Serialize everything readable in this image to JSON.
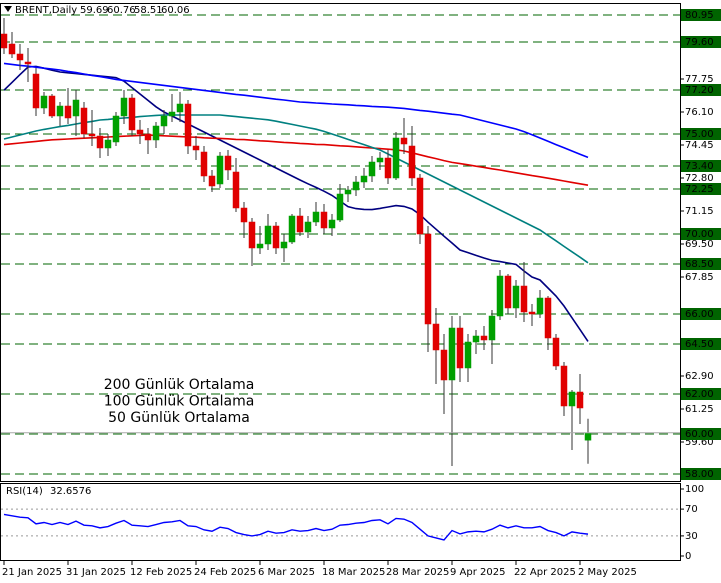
{
  "chart_data": [
    {
      "type": "candlestick",
      "title": "BRENT,Daily",
      "categories": [
        "21 Jan 2025",
        null,
        null,
        null,
        null,
        null,
        null,
        null,
        "31 Jan 2025",
        null,
        null,
        null,
        null,
        null,
        null,
        null,
        "12 Feb 2025",
        null,
        null,
        null,
        null,
        null,
        null,
        null,
        "24 Feb 2025",
        null,
        null,
        null,
        null,
        null,
        null,
        null,
        "6 Mar 2025",
        null,
        null,
        null,
        null,
        null,
        null,
        null,
        "18 Mar 2025",
        null,
        null,
        null,
        null,
        null,
        null,
        null,
        "28 Mar 2025",
        null,
        null,
        null,
        null,
        null,
        null,
        null,
        "9 Apr 2025",
        null,
        null,
        null,
        null,
        null,
        null,
        null,
        "22 Apr 2025",
        null,
        null,
        null,
        null,
        null,
        null,
        null,
        "2 May 2025",
        null
      ],
      "open": [
        80.0,
        79.5,
        79.0,
        78.6,
        78.0,
        76.3,
        76.9,
        75.9,
        76.4,
        75.9,
        76.3,
        75.0,
        74.9,
        74.3,
        74.6,
        75.9,
        76.8,
        75.2,
        75.0,
        74.7,
        75.4,
        75.9,
        76.1,
        76.5,
        74.4,
        74.1,
        72.9,
        72.5,
        73.9,
        73.1,
        71.3,
        70.6,
        69.3,
        69.5,
        70.4,
        69.3,
        69.6,
        70.9,
        70.1,
        70.6,
        71.1,
        70.3,
        70.7,
        72.0,
        72.2,
        72.6,
        72.9,
        73.6,
        73.8,
        72.8,
        74.8,
        74.4,
        72.8,
        70.0,
        65.5,
        64.2,
        62.7,
        65.3,
        63.3,
        64.6,
        64.9,
        64.7,
        65.9,
        67.9,
        66.3,
        67.4,
        66.1,
        66.0,
        66.8,
        64.8,
        63.4,
        61.4,
        62.1,
        59.69
      ],
      "high": [
        80.8,
        80.1,
        79.5,
        79.3,
        78.3,
        77.1,
        77.0,
        76.6,
        77.3,
        77.2,
        76.6,
        76.2,
        75.3,
        75.0,
        76.1,
        77.2,
        77.0,
        75.7,
        75.3,
        75.6,
        76.2,
        77.0,
        77.1,
        76.7,
        74.9,
        74.4,
        73.2,
        74.1,
        74.2,
        73.8,
        71.6,
        70.8,
        70.4,
        71.0,
        70.6,
        70.0,
        71.0,
        71.3,
        70.9,
        71.6,
        71.5,
        71.0,
        72.5,
        72.4,
        72.9,
        73.3,
        73.9,
        74.1,
        74.2,
        75.1,
        75.8,
        75.4,
        73.0,
        70.4,
        66.3,
        65.0,
        65.9,
        65.9,
        65.0,
        65.2,
        65.4,
        66.2,
        68.2,
        68.0,
        67.7,
        68.6,
        66.5,
        67.2,
        66.9,
        65.0,
        63.6,
        62.2,
        63.0,
        60.76
      ],
      "low": [
        79.0,
        78.8,
        78.2,
        77.6,
        75.9,
        76.0,
        75.8,
        75.4,
        75.5,
        74.9,
        74.8,
        74.4,
        73.8,
        73.9,
        74.4,
        75.5,
        74.9,
        74.5,
        74.0,
        74.3,
        75.0,
        75.6,
        75.6,
        74.0,
        73.7,
        72.6,
        72.1,
        72.3,
        72.7,
        71.1,
        69.8,
        68.4,
        69.0,
        69.2,
        69.0,
        68.6,
        69.5,
        69.9,
        69.8,
        70.4,
        70.0,
        69.9,
        70.6,
        71.6,
        71.9,
        72.3,
        72.6,
        73.2,
        72.5,
        72.7,
        74.0,
        72.4,
        69.5,
        64.1,
        62.5,
        61.0,
        58.4,
        62.6,
        62.6,
        64.0,
        64.2,
        63.5,
        65.7,
        66.0,
        65.8,
        65.6,
        65.4,
        65.8,
        64.2,
        63.2,
        60.9,
        59.2,
        60.5,
        58.51
      ],
      "close": [
        79.3,
        79.0,
        78.7,
        78.5,
        76.3,
        76.9,
        75.9,
        76.4,
        75.8,
        76.7,
        75.0,
        74.9,
        74.3,
        74.7,
        75.9,
        76.8,
        75.2,
        75.0,
        74.7,
        75.4,
        75.9,
        76.1,
        76.5,
        74.4,
        74.2,
        72.9,
        72.4,
        73.9,
        73.2,
        71.3,
        70.6,
        69.3,
        69.5,
        70.4,
        69.3,
        69.6,
        70.9,
        70.1,
        70.6,
        71.1,
        70.3,
        70.7,
        72.0,
        72.2,
        72.6,
        72.9,
        73.6,
        73.8,
        72.8,
        74.8,
        74.5,
        72.8,
        70.0,
        65.5,
        64.2,
        62.7,
        65.3,
        63.3,
        64.6,
        64.9,
        64.7,
        65.9,
        67.9,
        66.3,
        67.4,
        66.1,
        66.0,
        66.8,
        64.8,
        63.4,
        61.4,
        62.1,
        61.3,
        60.06
      ],
      "up_color": "#00a000",
      "down_color": "#e00000",
      "wick_color": "#333333",
      "ylim": [
        57.65,
        81.55
      ],
      "yticks": [
        77.75,
        {
          "value": 76.1,
          "label": "76.10"
        },
        74.45,
        {
          "value": 72.8,
          "label": "72.80"
        },
        71.15,
        {
          "value": 69.5,
          "label": "69.50"
        },
        67.85,
        {
          "value": 62.9,
          "label": "62.90"
        },
        61.25,
        {
          "value": 59.6,
          "label": "59.60"
        }
      ],
      "levels": [
        80.95,
        {
          "value": 79.6,
          "label": "79.60"
        },
        {
          "value": 77.2,
          "label": "77.20"
        },
        {
          "value": 75,
          "label": "75.00"
        },
        {
          "value": 73.4,
          "label": "73.40"
        },
        72.25,
        {
          "value": 70,
          "label": "70.00"
        },
        {
          "value": 68.5,
          "label": "68.50"
        },
        {
          "value": 66,
          "label": "66.00"
        },
        {
          "value": 64.5,
          "label": "64.50"
        },
        {
          "value": 62,
          "label": "62.00"
        },
        {
          "value": 60,
          "label": "60.00"
        },
        {
          "value": 58,
          "label": "58.00"
        }
      ],
      "level_color": "#006400",
      "series": [
        {
          "color": "#000080",
          "values": [
            77.19,
            77.58,
            77.97,
            78.35,
            78.38,
            78.29,
            78.19,
            78.1,
            78.06,
            78.02,
            77.98,
            77.94,
            77.9,
            77.86,
            77.82,
            77.64,
            77.32,
            77.0,
            76.68,
            76.36,
            76.1,
            75.9,
            75.7,
            75.5,
            75.3,
            75.1,
            74.9,
            74.7,
            74.5,
            74.3,
            74.1,
            73.9,
            73.7,
            73.5,
            73.3,
            73.1,
            72.9,
            72.7,
            72.51,
            72.33,
            72.14,
            71.93,
            71.65,
            71.37,
            71.27,
            71.23,
            71.22,
            71.28,
            71.35,
            71.42,
            71.38,
            71.25,
            70.97,
            70.59,
            70.24,
            69.89,
            69.55,
            69.2,
            69.07,
            68.93,
            68.8,
            68.68,
            68.62,
            68.55,
            68.48,
            68.15,
            67.85,
            67.7,
            67.3,
            66.9,
            66.4,
            65.81,
            65.22,
            64.63
          ]
        },
        {
          "name": "200 Günlük Ortalama",
          "color": "#0000ff",
          "values": [
            78.53,
            78.48,
            78.43,
            78.39,
            78.34,
            78.29,
            78.25,
            78.2,
            78.13,
            78.07,
            78.0,
            77.93,
            77.87,
            77.8,
            77.73,
            77.68,
            77.63,
            77.58,
            77.53,
            77.48,
            77.43,
            77.38,
            77.33,
            77.28,
            77.23,
            77.18,
            77.13,
            77.08,
            77.03,
            76.98,
            76.94,
            76.89,
            76.84,
            76.79,
            76.74,
            76.7,
            76.65,
            76.6,
            76.58,
            76.55,
            76.53,
            76.5,
            76.48,
            76.46,
            76.43,
            76.41,
            76.38,
            76.36,
            76.34,
            76.31,
            76.28,
            76.23,
            76.18,
            76.14,
            76.09,
            76.04,
            75.99,
            75.95,
            75.85,
            75.75,
            75.65,
            75.55,
            75.45,
            75.35,
            75.25,
            75.12,
            74.96,
            74.8,
            74.64,
            74.47,
            74.31,
            74.15,
            73.99,
            73.83
          ]
        },
        {
          "name": "100 Günlük Ortalama",
          "color": "#e00000",
          "values": [
            74.47,
            74.51,
            74.55,
            74.59,
            74.63,
            74.67,
            74.71,
            74.73,
            74.75,
            74.77,
            74.79,
            74.81,
            74.83,
            74.85,
            74.87,
            74.89,
            74.91,
            74.93,
            74.95,
            74.93,
            74.91,
            74.89,
            74.87,
            74.85,
            74.84,
            74.81,
            74.79,
            74.78,
            74.76,
            74.73,
            74.72,
            74.69,
            74.66,
            74.64,
            74.61,
            74.58,
            74.56,
            74.53,
            74.51,
            74.48,
            74.47,
            74.44,
            74.41,
            74.39,
            74.36,
            74.33,
            74.3,
            74.27,
            74.24,
            74.21,
            74.15,
            74.06,
            73.96,
            73.86,
            73.77,
            73.67,
            73.58,
            73.52,
            73.46,
            73.39,
            73.33,
            73.26,
            73.2,
            73.13,
            73.06,
            72.99,
            72.92,
            72.86,
            72.79,
            72.72,
            72.65,
            72.58,
            72.51,
            72.44
          ]
        },
        {
          "name": "50 Günlük Ortalama",
          "color": "#008080",
          "values": [
            74.75,
            74.85,
            74.95,
            75.05,
            75.15,
            75.23,
            75.3,
            75.37,
            75.43,
            75.5,
            75.57,
            75.63,
            75.7,
            75.73,
            75.77,
            75.8,
            75.83,
            75.87,
            75.9,
            75.93,
            75.95,
            75.95,
            75.95,
            75.95,
            75.95,
            75.95,
            75.95,
            75.95,
            75.91,
            75.87,
            75.83,
            75.79,
            75.75,
            75.71,
            75.64,
            75.56,
            75.48,
            75.4,
            75.32,
            75.24,
            75.13,
            75.0,
            74.87,
            74.73,
            74.6,
            74.47,
            74.33,
            74.2,
            74.0,
            73.8,
            73.6,
            73.4,
            73.2,
            73.0,
            72.8,
            72.6,
            72.4,
            72.2,
            72.0,
            71.8,
            71.6,
            71.4,
            71.2,
            71.0,
            70.8,
            70.6,
            70.4,
            70.2,
            69.93,
            69.66,
            69.38,
            69.11,
            68.84,
            68.56
          ]
        }
      ]
    },
    {
      "type": "line",
      "title": "RSI(14)",
      "color": "#0000ff",
      "values": [
        62,
        60,
        58,
        57,
        48,
        50,
        47,
        50,
        47,
        52,
        46,
        45,
        42,
        44,
        49,
        53,
        46,
        45,
        44,
        47,
        50,
        51,
        53,
        45,
        44,
        39,
        37,
        43,
        41,
        35,
        32,
        30,
        32,
        37,
        34,
        35,
        39,
        37,
        38,
        41,
        38,
        40,
        46,
        47,
        49,
        50,
        53,
        54,
        48,
        56,
        55,
        50,
        40,
        30,
        27,
        24,
        38,
        33,
        36,
        37,
        36,
        40,
        46,
        42,
        45,
        42,
        42,
        44,
        38,
        35,
        30,
        36,
        34,
        32.6576
      ],
      "ylim": [
        0,
        100
      ],
      "yticks": [
        100,
        70,
        30,
        0
      ],
      "levels": [
        70,
        30
      ]
    }
  ]
}
